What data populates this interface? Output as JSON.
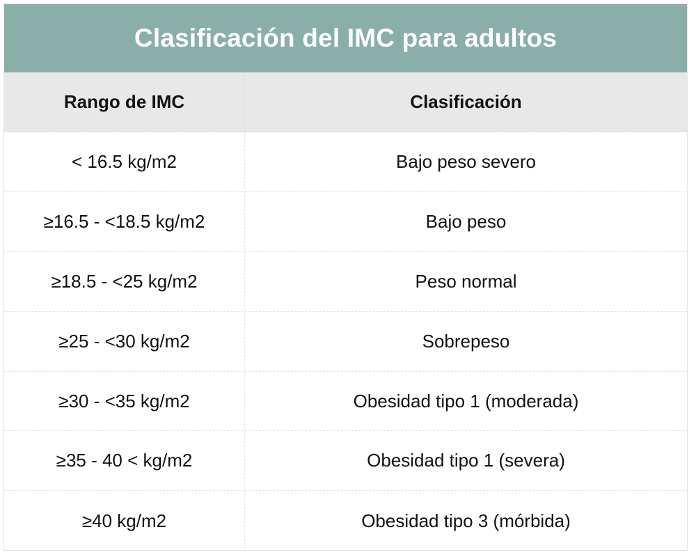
{
  "table": {
    "title": "Clasificación del IMC para adultos",
    "headers": {
      "range": "Rango de IMC",
      "classification": "Clasificación"
    },
    "rows": [
      {
        "range": "< 16.5 kg/m2",
        "classification": "Bajo peso severo"
      },
      {
        "range": "≥16.5 - <18.5 kg/m2",
        "classification": "Bajo peso"
      },
      {
        "range": "≥18.5 - <25 kg/m2",
        "classification": "Peso normal"
      },
      {
        "range": "≥25 - <30 kg/m2",
        "classification": "Sobrepeso"
      },
      {
        "range": "≥30 - <35 kg/m2",
        "classification": "Obesidad tipo 1 (moderada)"
      },
      {
        "range": "≥35 - 40 < kg/m2",
        "classification": "Obesidad tipo 1 (severa)"
      },
      {
        "range": "≥40 kg/m2",
        "classification": "Obesidad tipo 3 (mórbida)"
      }
    ],
    "colors": {
      "title_bg": "#8aaea8",
      "title_text": "#ffffff",
      "header_bg": "#e8e8e8"
    }
  }
}
